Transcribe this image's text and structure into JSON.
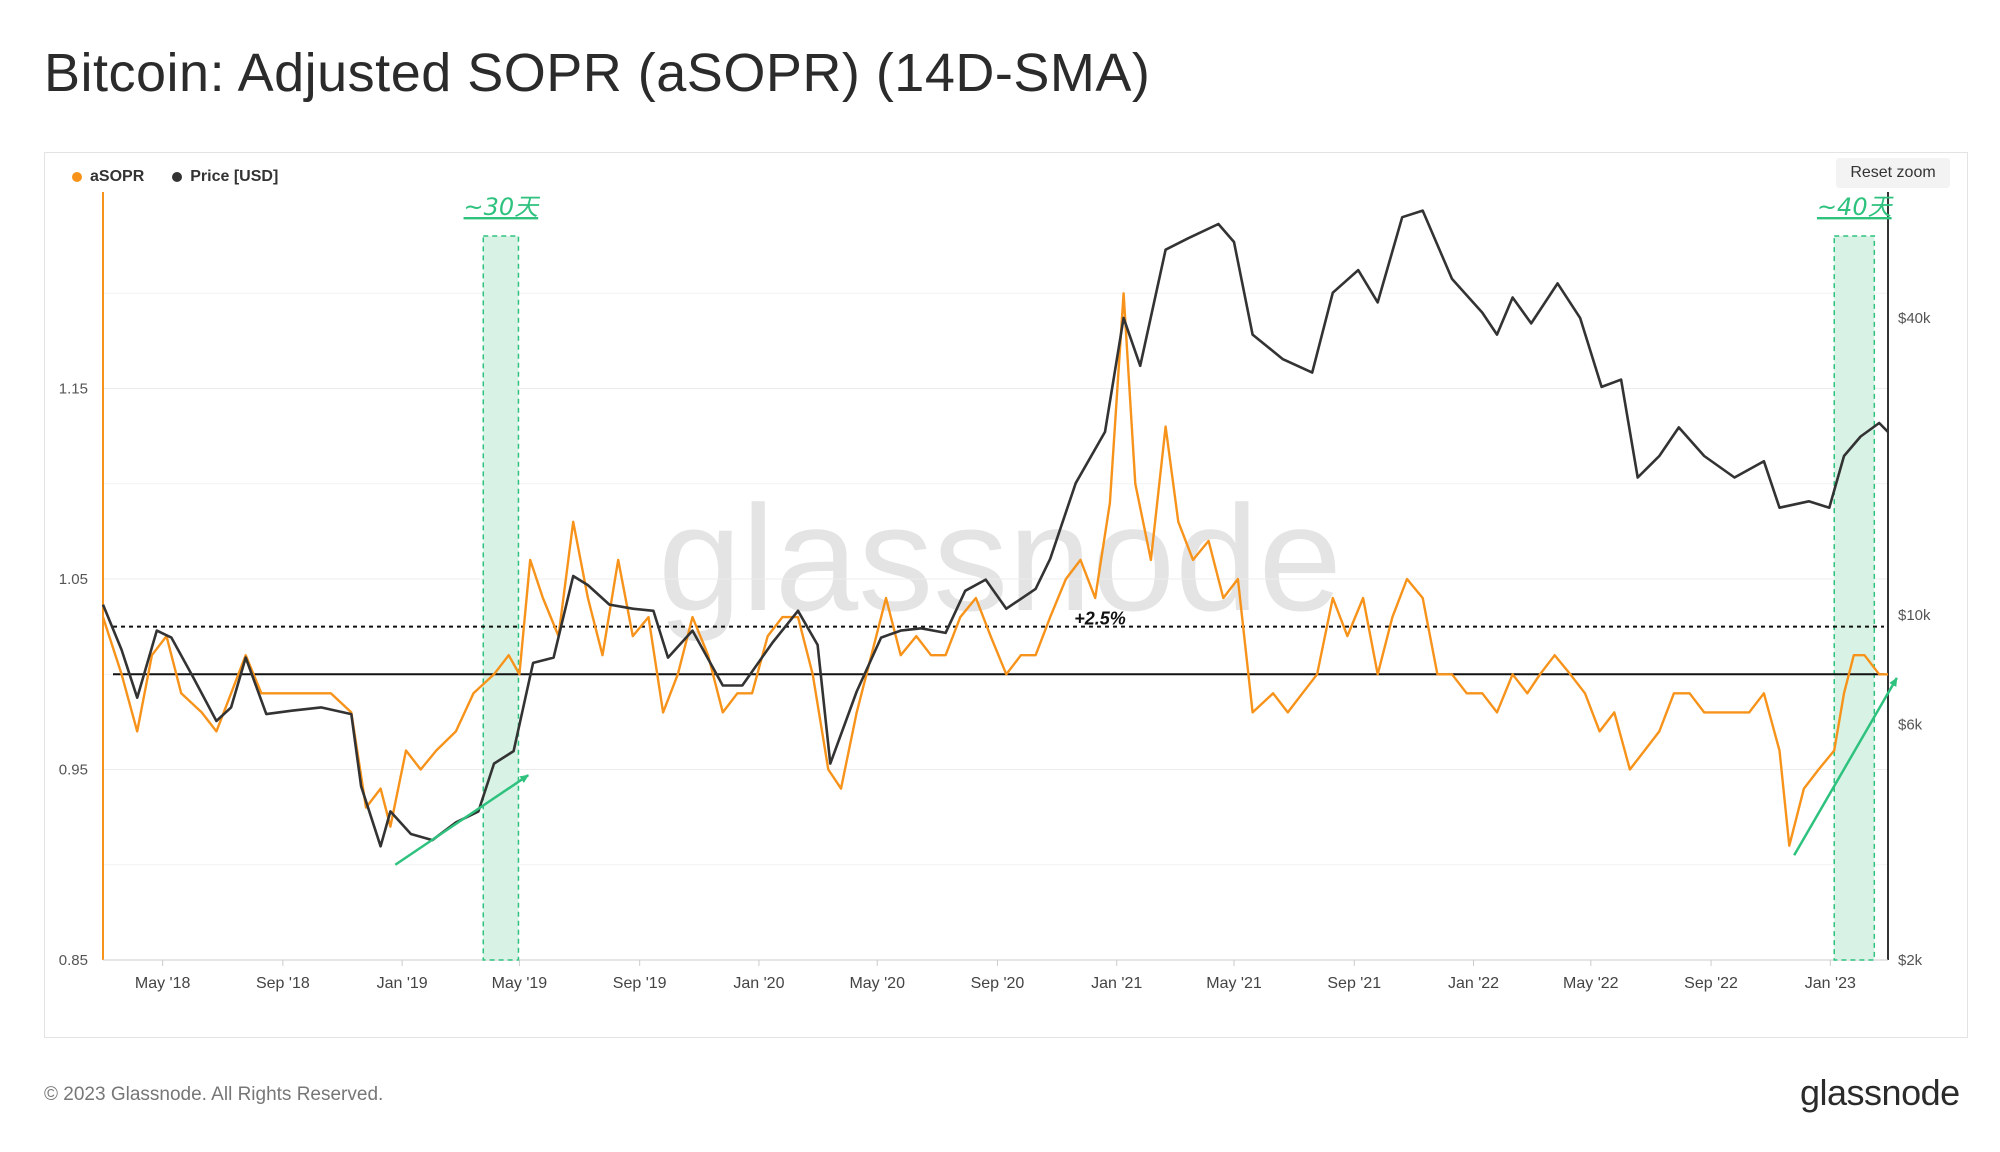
{
  "title": "Bitcoin: Adjusted SOPR (aSOPR) (14D-SMA)",
  "reset_zoom_label": "Reset zoom",
  "footer": {
    "copyright": "© 2023 Glassnode. All Rights Reserved.",
    "logo": "glassnode"
  },
  "watermark": "glassnode",
  "colors": {
    "asopr": "#f7931a",
    "price": "#333333",
    "highlight": "#2ec27e",
    "highlight_fill": "#d8f3e6"
  },
  "chart_data": {
    "type": "line",
    "title": "Bitcoin: Adjusted SOPR (aSOPR) (14D-SMA)",
    "x_start": "2018-03",
    "x_end": "2023-03",
    "x_tick_labels": [
      "May '18",
      "Sep '18",
      "Jan '19",
      "May '19",
      "Sep '19",
      "Jan '20",
      "May '20",
      "Sep '20",
      "Jan '21",
      "May '21",
      "Sep '21",
      "Jan '22",
      "May '22",
      "Sep '22",
      "Jan '23"
    ],
    "x_tick_dates": [
      "2018-05",
      "2018-09",
      "2019-01",
      "2019-05",
      "2019-09",
      "2020-01",
      "2020-05",
      "2020-09",
      "2021-01",
      "2021-05",
      "2021-09",
      "2022-01",
      "2022-05",
      "2022-09",
      "2023-01"
    ],
    "y_left": {
      "label": "",
      "ticks": [
        0.85,
        0.95,
        1.05,
        1.15
      ],
      "tick_labels": [
        "0.85",
        "0.95",
        "1.05",
        "1.15"
      ],
      "range": [
        0.85,
        1.25
      ]
    },
    "y_right": {
      "label": "",
      "scale": "log",
      "ticks": [
        2000,
        6000,
        10000,
        40000
      ],
      "tick_labels": [
        "$2k",
        "$6k",
        "$10k",
        "$40k"
      ],
      "range": [
        2000,
        70000
      ]
    },
    "legend": {
      "placement": "top-left",
      "entries": [
        "aSOPR",
        "Price [USD]"
      ]
    },
    "grid": true,
    "series": [
      {
        "name": "aSOPR",
        "axis": "left",
        "color": "#f7931a",
        "points": [
          [
            "2018-03-01",
            1.03
          ],
          [
            "2018-03-20",
            1.0
          ],
          [
            "2018-04-05",
            0.97
          ],
          [
            "2018-04-20",
            1.01
          ],
          [
            "2018-05-05",
            1.02
          ],
          [
            "2018-05-20",
            0.99
          ],
          [
            "2018-06-10",
            0.98
          ],
          [
            "2018-06-25",
            0.97
          ],
          [
            "2018-07-10",
            0.99
          ],
          [
            "2018-07-25",
            1.01
          ],
          [
            "2018-08-10",
            0.99
          ],
          [
            "2018-08-25",
            0.99
          ],
          [
            "2018-09-10",
            0.99
          ],
          [
            "2018-10-01",
            0.99
          ],
          [
            "2018-10-20",
            0.99
          ],
          [
            "2018-11-10",
            0.98
          ],
          [
            "2018-11-25",
            0.93
          ],
          [
            "2018-12-10",
            0.94
          ],
          [
            "2018-12-20",
            0.92
          ],
          [
            "2019-01-05",
            0.96
          ],
          [
            "2019-01-20",
            0.95
          ],
          [
            "2019-02-05",
            0.96
          ],
          [
            "2019-02-25",
            0.97
          ],
          [
            "2019-03-15",
            0.99
          ],
          [
            "2019-04-05",
            1.0
          ],
          [
            "2019-04-20",
            1.01
          ],
          [
            "2019-05-01",
            1.0
          ],
          [
            "2019-05-12",
            1.06
          ],
          [
            "2019-05-25",
            1.04
          ],
          [
            "2019-06-10",
            1.02
          ],
          [
            "2019-06-25",
            1.08
          ],
          [
            "2019-07-10",
            1.04
          ],
          [
            "2019-07-25",
            1.01
          ],
          [
            "2019-08-10",
            1.06
          ],
          [
            "2019-08-25",
            1.02
          ],
          [
            "2019-09-10",
            1.03
          ],
          [
            "2019-09-25",
            0.98
          ],
          [
            "2019-10-10",
            1.0
          ],
          [
            "2019-10-25",
            1.03
          ],
          [
            "2019-11-10",
            1.01
          ],
          [
            "2019-11-25",
            0.98
          ],
          [
            "2019-12-10",
            0.99
          ],
          [
            "2019-12-25",
            0.99
          ],
          [
            "2020-01-10",
            1.02
          ],
          [
            "2020-01-25",
            1.03
          ],
          [
            "2020-02-10",
            1.03
          ],
          [
            "2020-02-25",
            1.0
          ],
          [
            "2020-03-12",
            0.95
          ],
          [
            "2020-03-25",
            0.94
          ],
          [
            "2020-04-10",
            0.98
          ],
          [
            "2020-04-25",
            1.01
          ],
          [
            "2020-05-10",
            1.04
          ],
          [
            "2020-05-25",
            1.01
          ],
          [
            "2020-06-10",
            1.02
          ],
          [
            "2020-06-25",
            1.01
          ],
          [
            "2020-07-10",
            1.01
          ],
          [
            "2020-07-25",
            1.03
          ],
          [
            "2020-08-10",
            1.04
          ],
          [
            "2020-08-25",
            1.02
          ],
          [
            "2020-09-10",
            1.0
          ],
          [
            "2020-09-25",
            1.01
          ],
          [
            "2020-10-10",
            1.01
          ],
          [
            "2020-10-25",
            1.03
          ],
          [
            "2020-11-10",
            1.05
          ],
          [
            "2020-11-25",
            1.06
          ],
          [
            "2020-12-10",
            1.04
          ],
          [
            "2020-12-25",
            1.09
          ],
          [
            "2021-01-08",
            1.2
          ],
          [
            "2021-01-20",
            1.1
          ],
          [
            "2021-02-05",
            1.06
          ],
          [
            "2021-02-20",
            1.13
          ],
          [
            "2021-03-05",
            1.08
          ],
          [
            "2021-03-20",
            1.06
          ],
          [
            "2021-04-05",
            1.07
          ],
          [
            "2021-04-20",
            1.04
          ],
          [
            "2021-05-05",
            1.05
          ],
          [
            "2021-05-20",
            0.98
          ],
          [
            "2021-06-10",
            0.99
          ],
          [
            "2021-06-25",
            0.98
          ],
          [
            "2021-07-10",
            0.99
          ],
          [
            "2021-07-25",
            1.0
          ],
          [
            "2021-08-10",
            1.04
          ],
          [
            "2021-08-25",
            1.02
          ],
          [
            "2021-09-10",
            1.04
          ],
          [
            "2021-09-25",
            1.0
          ],
          [
            "2021-10-10",
            1.03
          ],
          [
            "2021-10-25",
            1.05
          ],
          [
            "2021-11-10",
            1.04
          ],
          [
            "2021-11-25",
            1.0
          ],
          [
            "2021-12-10",
            1.0
          ],
          [
            "2021-12-25",
            0.99
          ],
          [
            "2022-01-10",
            0.99
          ],
          [
            "2022-01-25",
            0.98
          ],
          [
            "2022-02-10",
            1.0
          ],
          [
            "2022-02-25",
            0.99
          ],
          [
            "2022-03-10",
            1.0
          ],
          [
            "2022-03-25",
            1.01
          ],
          [
            "2022-04-10",
            1.0
          ],
          [
            "2022-04-25",
            0.99
          ],
          [
            "2022-05-10",
            0.97
          ],
          [
            "2022-05-25",
            0.98
          ],
          [
            "2022-06-10",
            0.95
          ],
          [
            "2022-06-25",
            0.96
          ],
          [
            "2022-07-10",
            0.97
          ],
          [
            "2022-07-25",
            0.99
          ],
          [
            "2022-08-10",
            0.99
          ],
          [
            "2022-08-25",
            0.98
          ],
          [
            "2022-09-10",
            0.98
          ],
          [
            "2022-09-25",
            0.98
          ],
          [
            "2022-10-10",
            0.98
          ],
          [
            "2022-10-25",
            0.99
          ],
          [
            "2022-11-10",
            0.96
          ],
          [
            "2022-11-20",
            0.91
          ],
          [
            "2022-12-05",
            0.94
          ],
          [
            "2022-12-20",
            0.95
          ],
          [
            "2023-01-05",
            0.96
          ],
          [
            "2023-01-15",
            0.99
          ],
          [
            "2023-01-25",
            1.01
          ],
          [
            "2023-02-05",
            1.01
          ],
          [
            "2023-02-20",
            1.0
          ],
          [
            "2023-03-01",
            1.0
          ]
        ]
      },
      {
        "name": "Price [USD]",
        "axis": "right",
        "color": "#333333",
        "points": [
          [
            "2018-03-01",
            10500
          ],
          [
            "2018-03-20",
            8500
          ],
          [
            "2018-04-05",
            6800
          ],
          [
            "2018-04-25",
            9300
          ],
          [
            "2018-05-10",
            9000
          ],
          [
            "2018-06-01",
            7500
          ],
          [
            "2018-06-25",
            6100
          ],
          [
            "2018-07-10",
            6500
          ],
          [
            "2018-07-25",
            8200
          ],
          [
            "2018-08-15",
            6300
          ],
          [
            "2018-09-10",
            6400
          ],
          [
            "2018-10-10",
            6500
          ],
          [
            "2018-11-10",
            6300
          ],
          [
            "2018-11-20",
            4500
          ],
          [
            "2018-12-10",
            3400
          ],
          [
            "2018-12-20",
            4000
          ],
          [
            "2019-01-10",
            3600
          ],
          [
            "2019-02-01",
            3500
          ],
          [
            "2019-02-25",
            3800
          ],
          [
            "2019-03-20",
            4000
          ],
          [
            "2019-04-05",
            5000
          ],
          [
            "2019-04-25",
            5300
          ],
          [
            "2019-05-15",
            8000
          ],
          [
            "2019-06-05",
            8200
          ],
          [
            "2019-06-25",
            12000
          ],
          [
            "2019-07-10",
            11500
          ],
          [
            "2019-08-01",
            10500
          ],
          [
            "2019-08-25",
            10300
          ],
          [
            "2019-09-15",
            10200
          ],
          [
            "2019-09-30",
            8200
          ],
          [
            "2019-10-25",
            9300
          ],
          [
            "2019-11-25",
            7200
          ],
          [
            "2019-12-15",
            7200
          ],
          [
            "2020-01-15",
            8800
          ],
          [
            "2020-02-10",
            10200
          ],
          [
            "2020-03-01",
            8700
          ],
          [
            "2020-03-14",
            5000
          ],
          [
            "2020-04-10",
            7000
          ],
          [
            "2020-05-05",
            9000
          ],
          [
            "2020-05-25",
            9300
          ],
          [
            "2020-06-15",
            9400
          ],
          [
            "2020-07-10",
            9200
          ],
          [
            "2020-07-30",
            11200
          ],
          [
            "2020-08-20",
            11800
          ],
          [
            "2020-09-10",
            10300
          ],
          [
            "2020-10-10",
            11300
          ],
          [
            "2020-10-25",
            13000
          ],
          [
            "2020-11-20",
            18500
          ],
          [
            "2020-12-20",
            23500
          ],
          [
            "2021-01-08",
            40000
          ],
          [
            "2021-01-25",
            32000
          ],
          [
            "2021-02-20",
            55000
          ],
          [
            "2021-03-15",
            58000
          ],
          [
            "2021-04-15",
            62000
          ],
          [
            "2021-05-01",
            57000
          ],
          [
            "2021-05-20",
            37000
          ],
          [
            "2021-06-20",
            33000
          ],
          [
            "2021-07-20",
            31000
          ],
          [
            "2021-08-10",
            45000
          ],
          [
            "2021-09-05",
            50000
          ],
          [
            "2021-09-25",
            43000
          ],
          [
            "2021-10-20",
            64000
          ],
          [
            "2021-11-10",
            66000
          ],
          [
            "2021-12-10",
            48000
          ],
          [
            "2022-01-10",
            41000
          ],
          [
            "2022-01-25",
            37000
          ],
          [
            "2022-02-10",
            44000
          ],
          [
            "2022-03-01",
            39000
          ],
          [
            "2022-03-28",
            47000
          ],
          [
            "2022-04-20",
            40000
          ],
          [
            "2022-05-12",
            29000
          ],
          [
            "2022-06-01",
            30000
          ],
          [
            "2022-06-18",
            19000
          ],
          [
            "2022-07-10",
            21000
          ],
          [
            "2022-07-30",
            24000
          ],
          [
            "2022-08-25",
            21000
          ],
          [
            "2022-09-25",
            19000
          ],
          [
            "2022-10-25",
            20500
          ],
          [
            "2022-11-10",
            16500
          ],
          [
            "2022-12-10",
            17000
          ],
          [
            "2022-12-31",
            16500
          ],
          [
            "2023-01-15",
            21000
          ],
          [
            "2023-02-01",
            23000
          ],
          [
            "2023-02-20",
            24500
          ],
          [
            "2023-03-01",
            23500
          ]
        ]
      }
    ],
    "reference_lines": [
      {
        "axis": "left",
        "value": 1.0,
        "style": "solid"
      },
      {
        "axis": "left",
        "value": 1.025,
        "style": "dashed",
        "label": "+2.5%"
      }
    ],
    "annotations": [
      {
        "text": "~30天",
        "x_from": "2019-03-25",
        "x_to": "2019-04-30"
      },
      {
        "text": "~40天",
        "x_from": "2023-01-05",
        "x_to": "2023-02-15"
      }
    ],
    "trend_arrows": [
      {
        "from": [
          "2018-12-25",
          0.9
        ],
        "to": [
          "2019-05-10",
          0.947
        ]
      },
      {
        "from": [
          "2022-11-25",
          0.905
        ],
        "to": [
          "2023-03-10",
          0.998
        ]
      }
    ]
  }
}
